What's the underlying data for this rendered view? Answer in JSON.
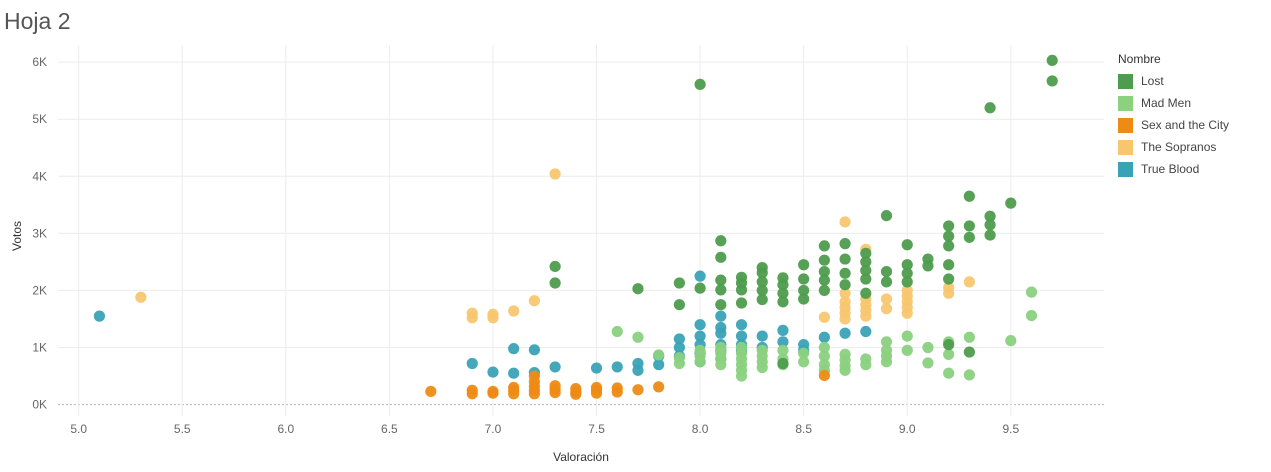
{
  "title": "Hoja 2",
  "legend": {
    "title": "Nombre",
    "items": [
      {
        "name": "Lost",
        "color": "#4e9c4e"
      },
      {
        "name": "Mad Men",
        "color": "#8bd17f"
      },
      {
        "name": "Sex and the City",
        "color": "#ee8b15"
      },
      {
        "name": "The Sopranos",
        "color": "#f8c66f"
      },
      {
        "name": "True Blood",
        "color": "#3aa2b6"
      }
    ]
  },
  "chart_data": {
    "type": "scatter",
    "xlabel": "Valoración",
    "ylabel": "Votos",
    "xlim": [
      4.9,
      9.95
    ],
    "ylim": [
      -200,
      6300
    ],
    "x_ticks": [
      "5.0",
      "5.5",
      "6.0",
      "6.5",
      "7.0",
      "7.5",
      "8.0",
      "8.5",
      "9.0",
      "9.5"
    ],
    "y_ticks": [
      {
        "v": 0,
        "label": "0K"
      },
      {
        "v": 1000,
        "label": "1K"
      },
      {
        "v": 2000,
        "label": "2K"
      },
      {
        "v": 3000,
        "label": "3K"
      },
      {
        "v": 4000,
        "label": "4K"
      },
      {
        "v": 5000,
        "label": "5K"
      },
      {
        "v": 6000,
        "label": "6K"
      }
    ],
    "grid": true,
    "legend_position": "right",
    "series": [
      {
        "name": "True Blood",
        "color": "#3aa2b6",
        "points": [
          [
            5.1,
            1550
          ],
          [
            6.9,
            720
          ],
          [
            7.0,
            570
          ],
          [
            7.1,
            980
          ],
          [
            7.1,
            550
          ],
          [
            7.2,
            960
          ],
          [
            7.2,
            560
          ],
          [
            7.3,
            660
          ],
          [
            7.5,
            640
          ],
          [
            7.6,
            660
          ],
          [
            7.7,
            720
          ],
          [
            7.7,
            600
          ],
          [
            7.8,
            700
          ],
          [
            7.8,
            850
          ],
          [
            7.9,
            1150
          ],
          [
            7.9,
            1000
          ],
          [
            7.9,
            850
          ],
          [
            8.0,
            2250
          ],
          [
            8.0,
            1400
          ],
          [
            8.0,
            1200
          ],
          [
            8.0,
            1050
          ],
          [
            8.0,
            900
          ],
          [
            8.0,
            750
          ],
          [
            8.1,
            1550
          ],
          [
            8.1,
            1350
          ],
          [
            8.1,
            1250
          ],
          [
            8.1,
            1050
          ],
          [
            8.1,
            950
          ],
          [
            8.1,
            800
          ],
          [
            8.2,
            1400
          ],
          [
            8.2,
            1200
          ],
          [
            8.2,
            1050
          ],
          [
            8.2,
            950
          ],
          [
            8.3,
            1200
          ],
          [
            8.3,
            1000
          ],
          [
            8.4,
            1300
          ],
          [
            8.4,
            1100
          ],
          [
            8.5,
            1050
          ],
          [
            8.5,
            950
          ],
          [
            8.6,
            1180
          ],
          [
            8.7,
            1250
          ],
          [
            8.8,
            1280
          ]
        ]
      },
      {
        "name": "Mad Men",
        "color": "#8bd17f",
        "points": [
          [
            7.6,
            1280
          ],
          [
            7.7,
            1180
          ],
          [
            7.8,
            870
          ],
          [
            7.9,
            820
          ],
          [
            7.9,
            720
          ],
          [
            8.0,
            950
          ],
          [
            8.0,
            850
          ],
          [
            8.0,
            750
          ],
          [
            8.1,
            1000
          ],
          [
            8.1,
            900
          ],
          [
            8.1,
            800
          ],
          [
            8.1,
            700
          ],
          [
            8.2,
            1000
          ],
          [
            8.2,
            900
          ],
          [
            8.2,
            800
          ],
          [
            8.2,
            700
          ],
          [
            8.2,
            600
          ],
          [
            8.2,
            500
          ],
          [
            8.3,
            950
          ],
          [
            8.3,
            850
          ],
          [
            8.3,
            750
          ],
          [
            8.3,
            650
          ],
          [
            8.4,
            950
          ],
          [
            8.4,
            800
          ],
          [
            8.4,
            700
          ],
          [
            8.5,
            900
          ],
          [
            8.5,
            750
          ],
          [
            8.6,
            1000
          ],
          [
            8.6,
            850
          ],
          [
            8.6,
            700
          ],
          [
            8.6,
            600
          ],
          [
            8.7,
            880
          ],
          [
            8.7,
            780
          ],
          [
            8.7,
            680
          ],
          [
            8.7,
            600
          ],
          [
            8.8,
            800
          ],
          [
            8.8,
            700
          ],
          [
            8.9,
            1100
          ],
          [
            8.9,
            950
          ],
          [
            8.9,
            850
          ],
          [
            8.9,
            750
          ],
          [
            9.0,
            1200
          ],
          [
            9.0,
            950
          ],
          [
            9.1,
            1000
          ],
          [
            9.1,
            730
          ],
          [
            9.2,
            1100
          ],
          [
            9.2,
            880
          ],
          [
            9.2,
            550
          ],
          [
            9.3,
            1180
          ],
          [
            9.3,
            520
          ],
          [
            9.5,
            1120
          ],
          [
            9.6,
            1970
          ],
          [
            9.6,
            1560
          ]
        ]
      },
      {
        "name": "Sex and the City",
        "color": "#ee8b15",
        "points": [
          [
            6.7,
            230
          ],
          [
            6.9,
            250
          ],
          [
            6.9,
            190
          ],
          [
            7.0,
            230
          ],
          [
            7.0,
            200
          ],
          [
            7.1,
            300
          ],
          [
            7.1,
            250
          ],
          [
            7.1,
            190
          ],
          [
            7.2,
            500
          ],
          [
            7.2,
            400
          ],
          [
            7.2,
            320
          ],
          [
            7.2,
            250
          ],
          [
            7.2,
            190
          ],
          [
            7.3,
            330
          ],
          [
            7.3,
            270
          ],
          [
            7.3,
            210
          ],
          [
            7.4,
            280
          ],
          [
            7.4,
            220
          ],
          [
            7.4,
            180
          ],
          [
            7.5,
            300
          ],
          [
            7.5,
            250
          ],
          [
            7.5,
            200
          ],
          [
            7.6,
            290
          ],
          [
            7.6,
            220
          ],
          [
            7.7,
            260
          ],
          [
            7.8,
            310
          ],
          [
            8.6,
            510
          ]
        ]
      },
      {
        "name": "The Sopranos",
        "color": "#f8c66f",
        "points": [
          [
            5.3,
            1880
          ],
          [
            6.9,
            1600
          ],
          [
            6.9,
            1520
          ],
          [
            7.0,
            1580
          ],
          [
            7.0,
            1520
          ],
          [
            7.1,
            1640
          ],
          [
            7.2,
            1820
          ],
          [
            7.3,
            4040
          ],
          [
            8.6,
            1530
          ],
          [
            8.7,
            3200
          ],
          [
            8.7,
            1950
          ],
          [
            8.7,
            1800
          ],
          [
            8.7,
            1700
          ],
          [
            8.7,
            1600
          ],
          [
            8.7,
            1500
          ],
          [
            8.8,
            2720
          ],
          [
            8.8,
            1850
          ],
          [
            8.8,
            1750
          ],
          [
            8.8,
            1650
          ],
          [
            8.8,
            1550
          ],
          [
            8.9,
            1850
          ],
          [
            8.9,
            1680
          ],
          [
            9.0,
            2000
          ],
          [
            9.0,
            1900
          ],
          [
            9.0,
            1800
          ],
          [
            9.0,
            1700
          ],
          [
            9.0,
            1600
          ],
          [
            9.2,
            2050
          ],
          [
            9.2,
            1950
          ],
          [
            9.3,
            2150
          ]
        ]
      },
      {
        "name": "Lost",
        "color": "#4e9c4e",
        "points": [
          [
            7.3,
            2420
          ],
          [
            7.3,
            2130
          ],
          [
            7.7,
            2030
          ],
          [
            7.9,
            2130
          ],
          [
            7.9,
            1750
          ],
          [
            8.0,
            5610
          ],
          [
            8.0,
            2040
          ],
          [
            8.1,
            2870
          ],
          [
            8.1,
            2580
          ],
          [
            8.1,
            2180
          ],
          [
            8.1,
            2010
          ],
          [
            8.1,
            1750
          ],
          [
            8.2,
            2230
          ],
          [
            8.2,
            2130
          ],
          [
            8.2,
            2010
          ],
          [
            8.2,
            1780
          ],
          [
            8.3,
            2400
          ],
          [
            8.3,
            2310
          ],
          [
            8.3,
            2150
          ],
          [
            8.3,
            2000
          ],
          [
            8.3,
            1840
          ],
          [
            8.4,
            2220
          ],
          [
            8.4,
            2100
          ],
          [
            8.4,
            1950
          ],
          [
            8.4,
            1800
          ],
          [
            8.4,
            720
          ],
          [
            8.5,
            2450
          ],
          [
            8.5,
            2200
          ],
          [
            8.5,
            2000
          ],
          [
            8.5,
            1850
          ],
          [
            8.6,
            2780
          ],
          [
            8.6,
            2530
          ],
          [
            8.6,
            2330
          ],
          [
            8.6,
            2180
          ],
          [
            8.6,
            2000
          ],
          [
            8.7,
            2820
          ],
          [
            8.7,
            2550
          ],
          [
            8.7,
            2300
          ],
          [
            8.7,
            2100
          ],
          [
            8.8,
            2650
          ],
          [
            8.8,
            2500
          ],
          [
            8.8,
            2350
          ],
          [
            8.8,
            2200
          ],
          [
            8.8,
            1950
          ],
          [
            8.9,
            3310
          ],
          [
            8.9,
            2330
          ],
          [
            8.9,
            2150
          ],
          [
            9.0,
            2800
          ],
          [
            9.0,
            2450
          ],
          [
            9.0,
            2300
          ],
          [
            9.0,
            2150
          ],
          [
            9.1,
            2550
          ],
          [
            9.1,
            2430
          ],
          [
            9.2,
            3130
          ],
          [
            9.2,
            2950
          ],
          [
            9.2,
            2780
          ],
          [
            9.2,
            2450
          ],
          [
            9.2,
            2200
          ],
          [
            9.2,
            1050
          ],
          [
            9.3,
            3650
          ],
          [
            9.3,
            3130
          ],
          [
            9.3,
            2930
          ],
          [
            9.3,
            920
          ],
          [
            9.4,
            5200
          ],
          [
            9.4,
            3300
          ],
          [
            9.4,
            3150
          ],
          [
            9.4,
            2970
          ],
          [
            9.5,
            3530
          ],
          [
            9.7,
            6030
          ],
          [
            9.7,
            5670
          ]
        ]
      }
    ]
  }
}
